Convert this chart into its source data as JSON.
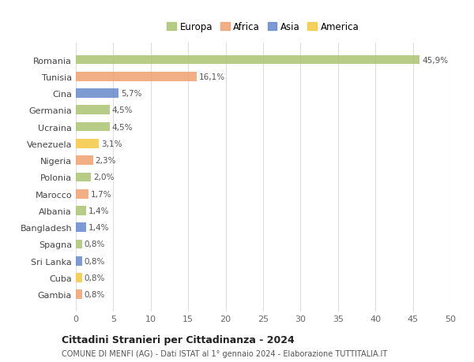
{
  "categories": [
    "Gambia",
    "Cuba",
    "Sri Lanka",
    "Spagna",
    "Bangladesh",
    "Albania",
    "Marocco",
    "Polonia",
    "Nigeria",
    "Venezuela",
    "Ucraina",
    "Germania",
    "Cina",
    "Tunisia",
    "Romania"
  ],
  "values": [
    0.8,
    0.8,
    0.8,
    0.8,
    1.4,
    1.4,
    1.7,
    2.0,
    2.3,
    3.1,
    4.5,
    4.5,
    5.7,
    16.1,
    45.9
  ],
  "colors": [
    "#f0a070",
    "#f5c842",
    "#6688cc",
    "#aac472",
    "#6688cc",
    "#aac472",
    "#f0a070",
    "#aac472",
    "#f0a070",
    "#f5c842",
    "#aac472",
    "#aac472",
    "#6688cc",
    "#f0a070",
    "#aac472"
  ],
  "labels": [
    "0,8%",
    "0,8%",
    "0,8%",
    "0,8%",
    "1,4%",
    "1,4%",
    "1,7%",
    "2,0%",
    "2,3%",
    "3,1%",
    "4,5%",
    "4,5%",
    "5,7%",
    "16,1%",
    "45,9%"
  ],
  "xlim": [
    0,
    50
  ],
  "xticks": [
    0,
    5,
    10,
    15,
    20,
    25,
    30,
    35,
    40,
    45,
    50
  ],
  "legend_labels": [
    "Europa",
    "Africa",
    "Asia",
    "America"
  ],
  "legend_colors": [
    "#aac472",
    "#f0a070",
    "#6688cc",
    "#f5c842"
  ],
  "title": "Cittadini Stranieri per Cittadinanza - 2024",
  "subtitle": "COMUNE DI MENFI (AG) - Dati ISTAT al 1° gennaio 2024 - Elaborazione TUTTITALIA.IT",
  "bg_color": "#ffffff",
  "grid_color": "#dddddd",
  "bar_height": 0.55
}
